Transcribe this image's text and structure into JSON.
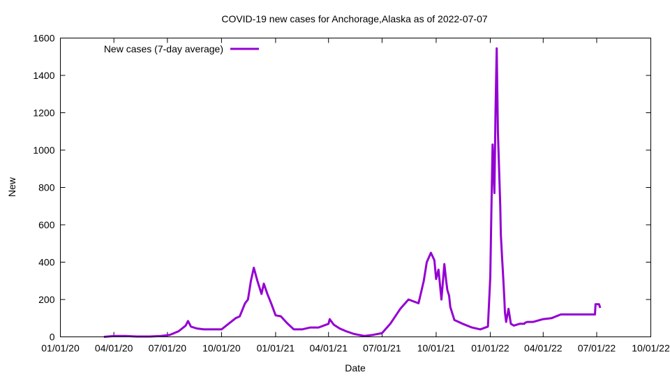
{
  "chart_data": {
    "type": "line",
    "title": "COVID-19 new cases for Anchorage,Alaska as of 2022-07-07",
    "xlabel": "Date",
    "ylabel": "New",
    "xlim": [
      "2020-01-01",
      "2022-10-01"
    ],
    "ylim": [
      0,
      1600
    ],
    "x_ticks": [
      "01/01/20",
      "04/01/20",
      "07/01/20",
      "10/01/20",
      "01/01/21",
      "04/01/21",
      "07/01/21",
      "10/01/21",
      "01/01/22",
      "04/01/22",
      "07/01/22",
      "10/01/22"
    ],
    "x_tick_dates": [
      "2020-01-01",
      "2020-04-01",
      "2020-07-01",
      "2020-10-01",
      "2021-01-01",
      "2021-04-01",
      "2021-07-01",
      "2021-10-01",
      "2022-01-01",
      "2022-04-01",
      "2022-07-01",
      "2022-10-01"
    ],
    "y_ticks": [
      0,
      200,
      400,
      600,
      800,
      1000,
      1200,
      1400,
      1600
    ],
    "legend_position": "top-left",
    "grid": false,
    "series": [
      {
        "name": "New cases (7-day average)",
        "color": "#9400d3",
        "x": [
          "2020-03-15",
          "2020-04-01",
          "2020-04-20",
          "2020-05-10",
          "2020-06-01",
          "2020-06-20",
          "2020-07-05",
          "2020-07-20",
          "2020-08-01",
          "2020-08-05",
          "2020-08-10",
          "2020-08-20",
          "2020-09-01",
          "2020-09-15",
          "2020-10-01",
          "2020-10-15",
          "2020-10-25",
          "2020-11-01",
          "2020-11-10",
          "2020-11-15",
          "2020-11-20",
          "2020-11-25",
          "2020-12-01",
          "2020-12-08",
          "2020-12-12",
          "2020-12-18",
          "2020-12-25",
          "2021-01-01",
          "2021-01-10",
          "2021-01-20",
          "2021-02-01",
          "2021-02-15",
          "2021-03-01",
          "2021-03-15",
          "2021-04-01",
          "2021-04-03",
          "2021-04-10",
          "2021-04-20",
          "2021-05-01",
          "2021-05-15",
          "2021-06-01",
          "2021-06-15",
          "2021-07-01",
          "2021-07-15",
          "2021-08-01",
          "2021-08-15",
          "2021-09-01",
          "2021-09-10",
          "2021-09-15",
          "2021-09-22",
          "2021-09-28",
          "2021-10-01",
          "2021-10-05",
          "2021-10-10",
          "2021-10-15",
          "2021-10-18",
          "2021-10-20",
          "2021-10-23",
          "2021-10-25",
          "2021-11-01",
          "2021-11-15",
          "2021-12-01",
          "2021-12-15",
          "2021-12-28",
          "2022-01-01",
          "2022-01-03",
          "2022-01-05",
          "2022-01-08",
          "2022-01-10",
          "2022-01-12",
          "2022-01-14",
          "2022-01-16",
          "2022-01-18",
          "2022-01-19",
          "2022-01-21",
          "2022-01-23",
          "2022-01-25",
          "2022-01-26",
          "2022-01-28",
          "2022-02-01",
          "2022-02-05",
          "2022-02-10",
          "2022-02-15",
          "2022-02-20",
          "2022-02-28",
          "2022-03-01",
          "2022-03-05",
          "2022-03-10",
          "2022-03-15",
          "2022-04-01",
          "2022-04-15",
          "2022-05-01",
          "2022-05-15",
          "2022-06-01",
          "2022-06-15",
          "2022-06-28",
          "2022-06-29",
          "2022-07-03",
          "2022-07-05",
          "2022-07-07"
        ],
        "values": [
          0,
          5,
          5,
          2,
          2,
          5,
          10,
          30,
          60,
          85,
          55,
          45,
          40,
          40,
          40,
          75,
          100,
          110,
          180,
          200,
          300,
          370,
          300,
          230,
          285,
          230,
          175,
          115,
          110,
          75,
          40,
          40,
          50,
          50,
          70,
          95,
          65,
          45,
          30,
          15,
          5,
          10,
          20,
          70,
          150,
          200,
          180,
          300,
          400,
          450,
          410,
          310,
          360,
          200,
          390,
          300,
          250,
          220,
          160,
          90,
          70,
          50,
          40,
          55,
          320,
          680,
          1030,
          770,
          1210,
          1545,
          1100,
          900,
          700,
          550,
          430,
          320,
          200,
          130,
          80,
          150,
          70,
          60,
          65,
          70,
          70,
          75,
          80,
          80,
          80,
          95,
          100,
          120,
          120,
          120,
          120,
          120,
          175,
          175,
          175,
          155
        ]
      }
    ]
  }
}
